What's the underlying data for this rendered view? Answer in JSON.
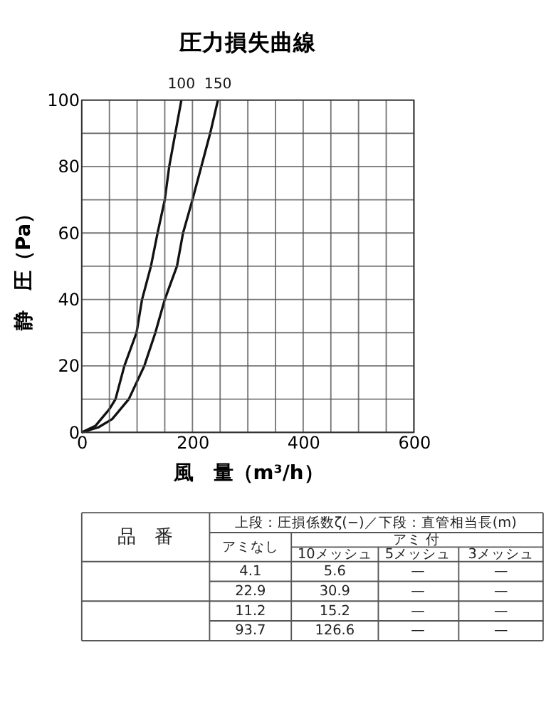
{
  "chart_data": {
    "type": "line",
    "title": "圧力損失曲線",
    "xlabel": "風　量（m³/h）",
    "ylabel": "静　圧（Pa）",
    "xlim": [
      0,
      600
    ],
    "ylim": [
      0,
      100
    ],
    "xticks": [
      0,
      {
        "value": 50,
        "label": null
      },
      {
        "value": 100,
        "label": null
      },
      {
        "value": 150,
        "label": null
      },
      200,
      {
        "value": 250,
        "label": null
      },
      {
        "value": 300,
        "label": null
      },
      {
        "value": 350,
        "label": null
      },
      400,
      {
        "value": 450,
        "label": null
      },
      {
        "value": 500,
        "label": null
      },
      {
        "value": 550,
        "label": null
      },
      600
    ],
    "yticks": [
      0,
      {
        "value": 10,
        "label": null
      },
      20,
      {
        "value": 30,
        "label": null
      },
      40,
      {
        "value": 50,
        "label": null
      },
      60,
      {
        "value": 70,
        "label": null
      },
      80,
      {
        "value": 90,
        "label": null
      },
      100
    ],
    "grid": true,
    "legend": false,
    "marker": "none",
    "line_style": "solid",
    "series": [
      {
        "name": "100",
        "color": "#111111",
        "x": [
          0,
          25,
          50,
          61,
          77,
          99,
          109,
          125,
          137,
          150,
          158,
          169,
          180
        ],
        "values": [
          0,
          2,
          7,
          10,
          20,
          30,
          40,
          50,
          60,
          70,
          80,
          90,
          100
        ]
      },
      {
        "name": "150",
        "color": "#111111",
        "x": [
          0,
          30,
          55,
          85,
          113,
          133,
          150,
          172,
          183,
          200,
          216,
          232,
          246
        ],
        "values": [
          0,
          1.5,
          4,
          10,
          20,
          30,
          40,
          50,
          60,
          70,
          80,
          90,
          100
        ]
      }
    ],
    "annotations": [
      "品　番",
      "上段：圧損係数ζ(−)／下段：直管相当長(m)",
      "アミなし",
      "アミ 付",
      "10メッシュ",
      "5メッシュ",
      "3メッシュ",
      "4.1",
      "5.6",
      "—",
      "—",
      "22.9",
      "30.9",
      "—",
      "—",
      "11.2",
      "15.2",
      "—",
      "—",
      "93.7",
      "126.6",
      "—",
      "—"
    ]
  }
}
